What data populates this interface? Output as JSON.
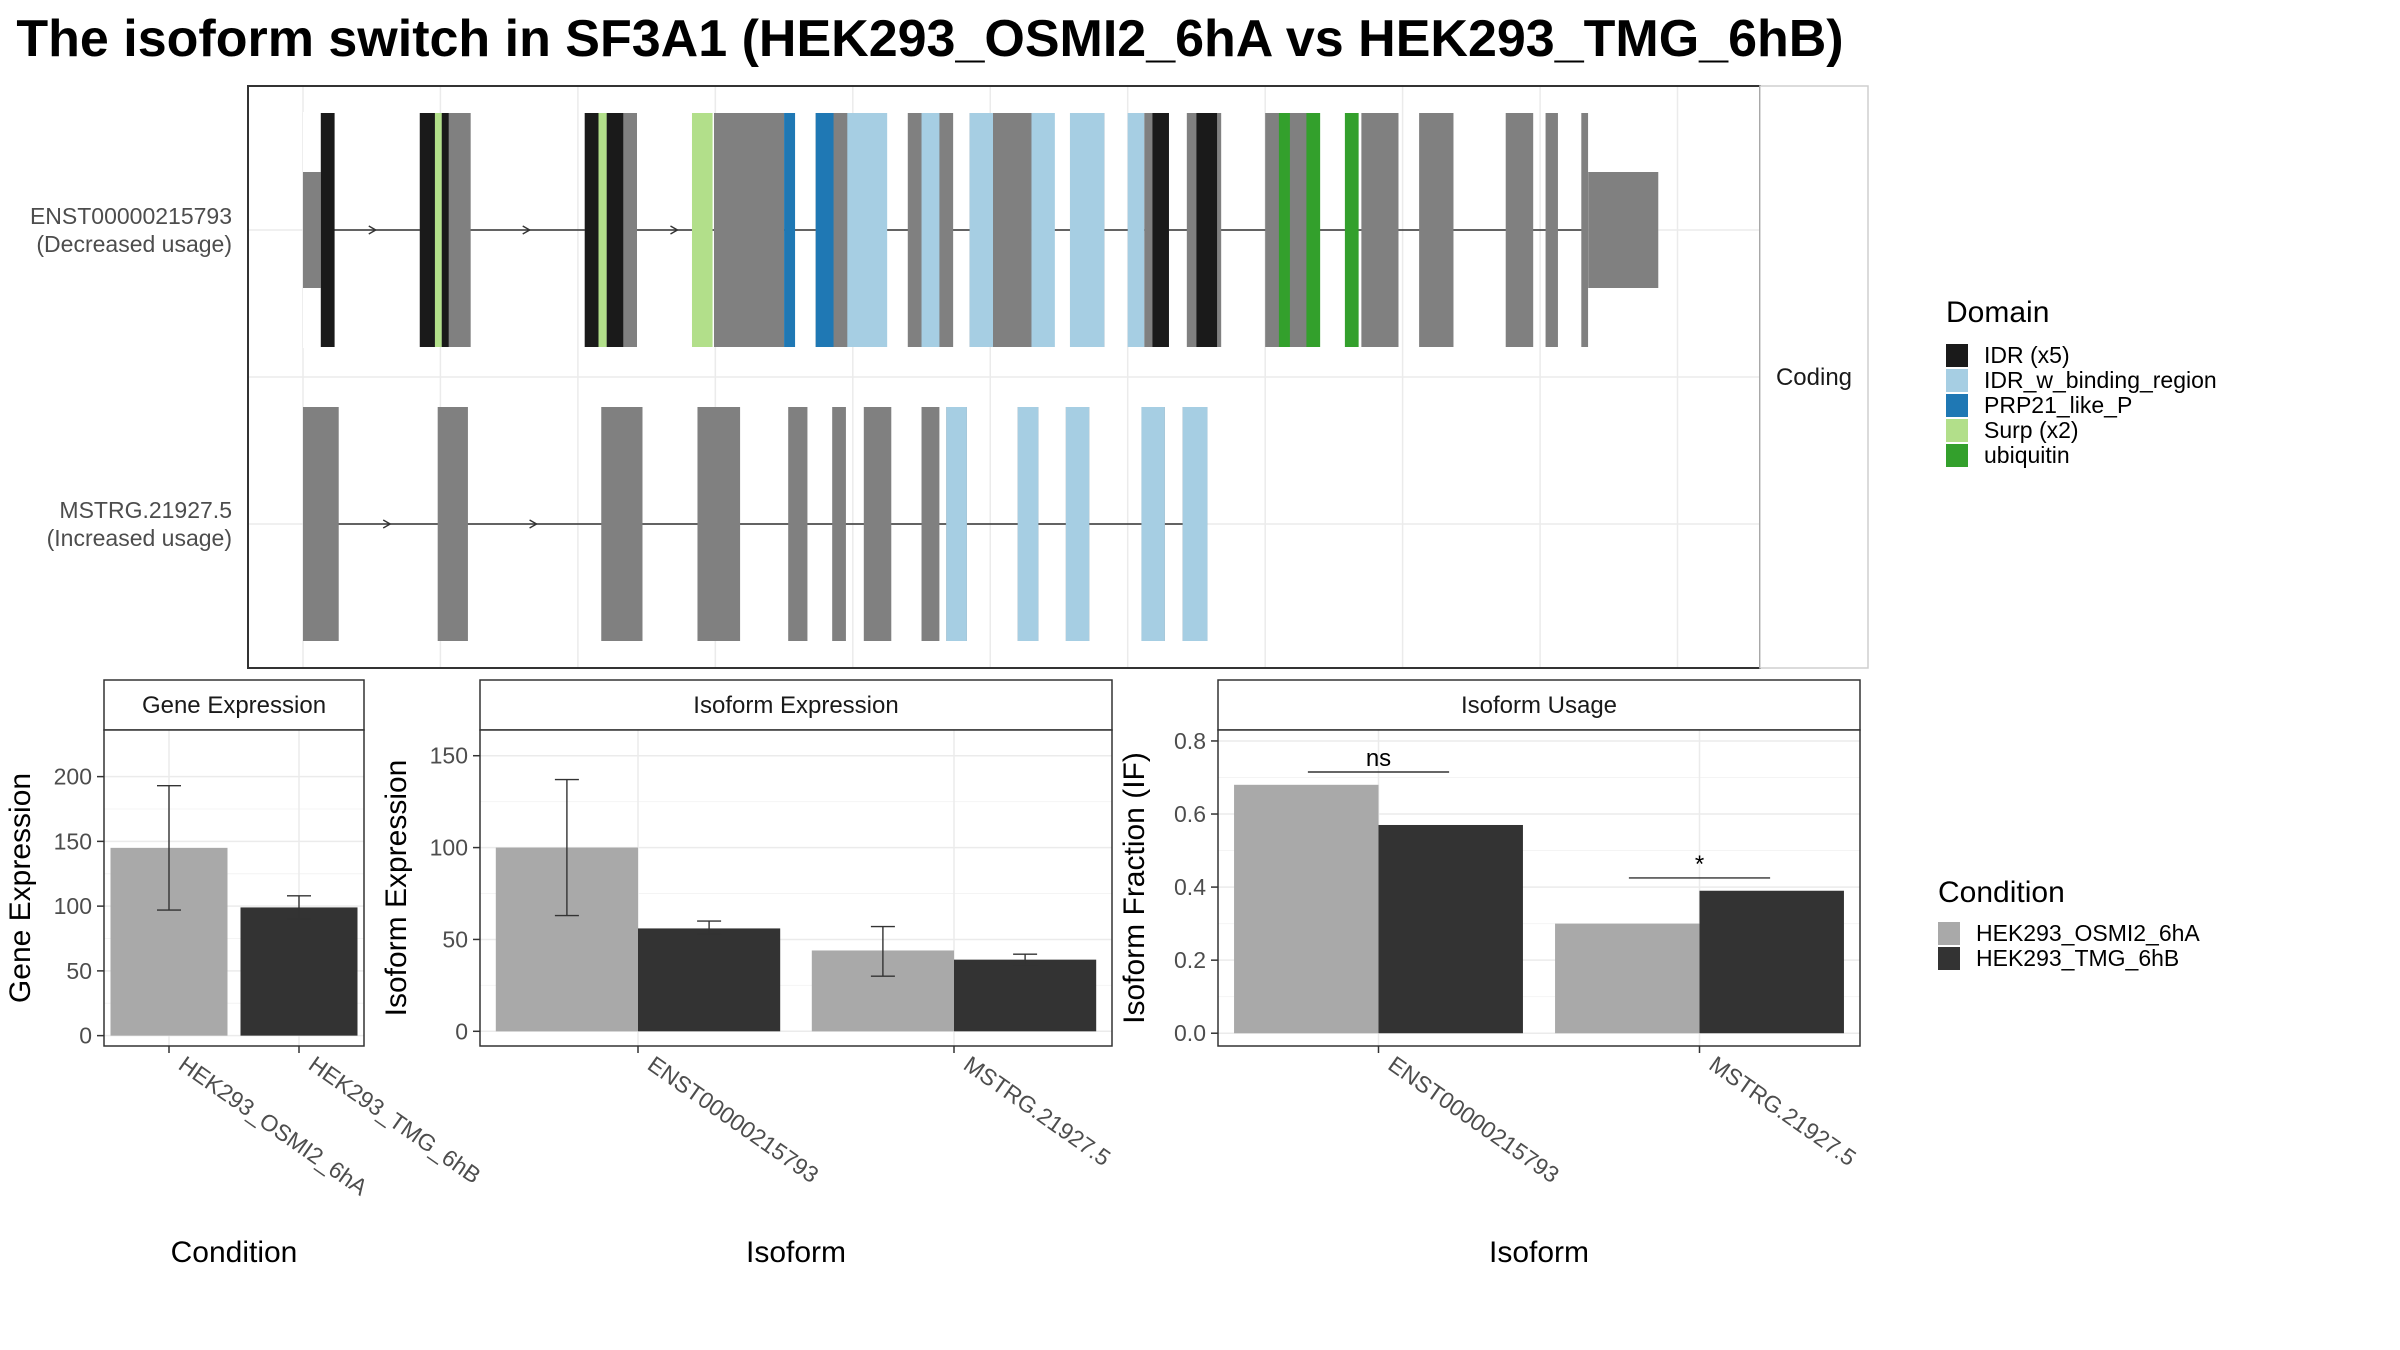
{
  "title": "The isoform switch in SF3A1 (HEK293_OSMI2_6hA vs HEK293_TMG_6hB)",
  "colors": {
    "IDR (x5)": "#1a1a1a",
    "IDR_w_binding_region": "#a6cee3",
    "PRP21_like_P": "#1f78b4",
    "Surp (x2)": "#b2df8a",
    "ubiquitin": "#33a02c",
    "noncoding": "#808080",
    "condA": "#a9a9a9",
    "condB": "#333333",
    "grid": "#ebebeb",
    "intron": "#333333"
  },
  "structure": {
    "strip_label": "Coding",
    "transcripts": [
      {
        "id": "ENST00000215793",
        "status": "(Decreased usage)",
        "exons": [
          [
            0.0,
            0.18
          ],
          [
            0.85,
            1.22
          ],
          [
            2.05,
            2.43
          ],
          [
            2.99,
            3.5
          ],
          [
            3.73,
            4.03
          ],
          [
            4.4,
            4.73
          ],
          [
            4.85,
            5.3
          ],
          [
            5.58,
            5.83
          ],
          [
            6.12,
            6.3
          ],
          [
            6.43,
            6.68
          ],
          [
            7.0,
            7.33
          ],
          [
            7.7,
            7.97
          ],
          [
            8.12,
            8.37
          ],
          [
            8.75,
            8.95
          ],
          [
            9.04,
            9.13
          ],
          [
            9.3,
            9.35
          ]
        ],
        "utr": [
          [
            0.0,
            0.13
          ],
          [
            9.35,
            9.86
          ]
        ],
        "domains": [
          {
            "name": "IDR (x5)",
            "start": 0.13,
            "end": 0.23
          },
          {
            "name": "IDR (x5)",
            "start": 0.85,
            "end": 0.96
          },
          {
            "name": "Surp (x2)",
            "start": 0.96,
            "end": 1.01
          },
          {
            "name": "IDR (x5)",
            "start": 1.01,
            "end": 1.06
          },
          {
            "name": "IDR (x5)",
            "start": 2.05,
            "end": 2.15
          },
          {
            "name": "Surp (x2)",
            "start": 2.15,
            "end": 2.21
          },
          {
            "name": "IDR (x5)",
            "start": 2.21,
            "end": 2.33
          },
          {
            "name": "Surp (x2)",
            "start": 2.83,
            "end": 2.98
          },
          {
            "name": "PRP21_like_P",
            "start": 3.5,
            "end": 3.58
          },
          {
            "name": "PRP21_like_P",
            "start": 3.73,
            "end": 3.86
          },
          {
            "name": "IDR_w_binding_region",
            "start": 3.96,
            "end": 4.25
          },
          {
            "name": "IDR_w_binding_region",
            "start": 4.5,
            "end": 4.63
          },
          {
            "name": "IDR_w_binding_region",
            "start": 4.85,
            "end": 5.02
          },
          {
            "name": "IDR_w_binding_region",
            "start": 5.3,
            "end": 5.47
          },
          {
            "name": "IDR_w_binding_region",
            "start": 5.58,
            "end": 5.83
          },
          {
            "name": "IDR_w_binding_region",
            "start": 6.0,
            "end": 6.12
          },
          {
            "name": "IDR (x5)",
            "start": 6.18,
            "end": 6.3
          },
          {
            "name": "IDR (x5)",
            "start": 6.5,
            "end": 6.65
          },
          {
            "name": "ubiquitin",
            "start": 7.1,
            "end": 7.18
          },
          {
            "name": "ubiquitin",
            "start": 7.3,
            "end": 7.4
          },
          {
            "name": "ubiquitin",
            "start": 7.58,
            "end": 7.68
          }
        ]
      },
      {
        "id": "MSTRG.21927.5",
        "status": "(Increased usage)",
        "exons": [
          [
            0.0,
            0.26
          ],
          [
            0.98,
            1.2
          ],
          [
            2.17,
            2.47
          ],
          [
            2.87,
            3.18
          ],
          [
            3.53,
            3.67
          ],
          [
            3.85,
            3.95
          ],
          [
            4.08,
            4.28
          ],
          [
            4.5,
            4.63
          ],
          [
            4.68,
            4.83
          ],
          [
            5.2,
            5.35
          ],
          [
            5.55,
            5.72
          ],
          [
            6.1,
            6.27
          ],
          [
            6.4,
            6.58
          ]
        ],
        "utr": [],
        "domains": [
          {
            "name": "IDR_w_binding_region",
            "start": 4.68,
            "end": 4.83
          },
          {
            "name": "IDR_w_binding_region",
            "start": 5.2,
            "end": 5.35
          },
          {
            "name": "IDR_w_binding_region",
            "start": 5.55,
            "end": 5.72
          },
          {
            "name": "IDR_w_binding_region",
            "start": 6.1,
            "end": 6.27
          },
          {
            "name": "IDR_w_binding_region",
            "start": 6.4,
            "end": 6.58
          }
        ]
      }
    ]
  },
  "legend_domain": {
    "title": "Domain",
    "items": [
      "IDR (x5)",
      "IDR_w_binding_region",
      "PRP21_like_P",
      "Surp (x2)",
      "ubiquitin"
    ]
  },
  "legend_condition": {
    "title": "Condition",
    "items": [
      "HEK293_OSMI2_6hA",
      "HEK293_TMG_6hB"
    ]
  },
  "chart_data": [
    {
      "type": "bar",
      "title": "Gene Expression",
      "xlabel": "Condition",
      "ylabel": "Gene Expression",
      "categories": [
        "HEK293_OSMI2_6hA",
        "HEK293_TMG_6hB"
      ],
      "values": [
        145,
        99
      ],
      "error_low": [
        97,
        90
      ],
      "error_high": [
        193,
        108
      ],
      "ylim": [
        -8,
        236
      ],
      "yticks": [
        0,
        50,
        100,
        150,
        200
      ],
      "grid": true
    },
    {
      "type": "bar",
      "title": "Isoform Expression",
      "xlabel": "Isoform",
      "ylabel": "Isoform Expression",
      "categories": [
        "ENST00000215793",
        "MSTRG.21927.5"
      ],
      "series": [
        {
          "name": "HEK293_OSMI2_6hA",
          "values": [
            100,
            44
          ],
          "error_low": [
            63,
            30
          ],
          "error_high": [
            137,
            57
          ]
        },
        {
          "name": "HEK293_TMG_6hB",
          "values": [
            56,
            39
          ],
          "error_low": [
            53,
            36
          ],
          "error_high": [
            60,
            42
          ]
        }
      ],
      "ylim": [
        -8,
        164
      ],
      "yticks": [
        0,
        50,
        100,
        150
      ],
      "grid": true
    },
    {
      "type": "bar",
      "title": "Isoform Usage",
      "xlabel": "Isoform",
      "ylabel": "Isoform Fraction (IF)",
      "categories": [
        "ENST00000215793",
        "MSTRG.21927.5"
      ],
      "series": [
        {
          "name": "HEK293_OSMI2_6hA",
          "values": [
            0.68,
            0.3
          ]
        },
        {
          "name": "HEK293_TMG_6hB",
          "values": [
            0.57,
            0.39
          ]
        }
      ],
      "ylim": [
        -0.035,
        0.83
      ],
      "yticks": [
        0.0,
        0.2,
        0.4,
        0.6,
        0.8
      ],
      "ytick_labels": [
        "0.0",
        "0.2",
        "0.4",
        "0.6",
        "0.8"
      ],
      "significance": [
        {
          "label": "ns",
          "y": 0.715
        },
        {
          "label": "*",
          "y": 0.425
        }
      ],
      "grid": true
    }
  ]
}
